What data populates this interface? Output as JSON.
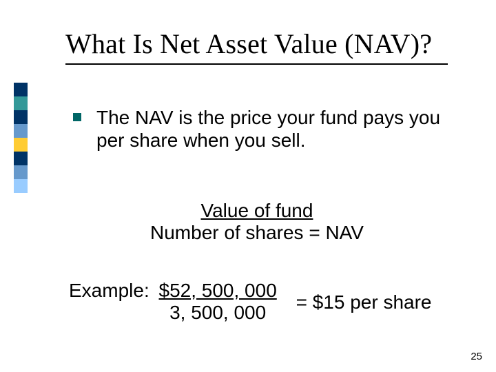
{
  "title": "What Is Net Asset Value (NAV)?",
  "sidebar_colors": [
    "#003366",
    "#339999",
    "#003366",
    "#6699cc",
    "#ffcc33",
    "#003366",
    "#6699cc",
    "#99ccff"
  ],
  "bullet": {
    "text": "The NAV is the price your fund pays you per share when you sell.",
    "marker_color": "#006666"
  },
  "formula": {
    "numerator": "Value of fund",
    "denominator": "Number of shares",
    "rhs": " = NAV"
  },
  "example": {
    "label": "Example:",
    "numerator": "$52, 500, 000",
    "denominator": "3, 500, 000",
    "rhs": "=  $15 per share"
  },
  "page_number": "25",
  "fonts": {
    "title_family": "Times New Roman",
    "body_family": "Arial",
    "title_size_pt": 40,
    "body_size_pt": 28,
    "page_num_size_pt": 15
  },
  "colors": {
    "background": "#ffffff",
    "text": "#000000",
    "underline": "#000000"
  }
}
